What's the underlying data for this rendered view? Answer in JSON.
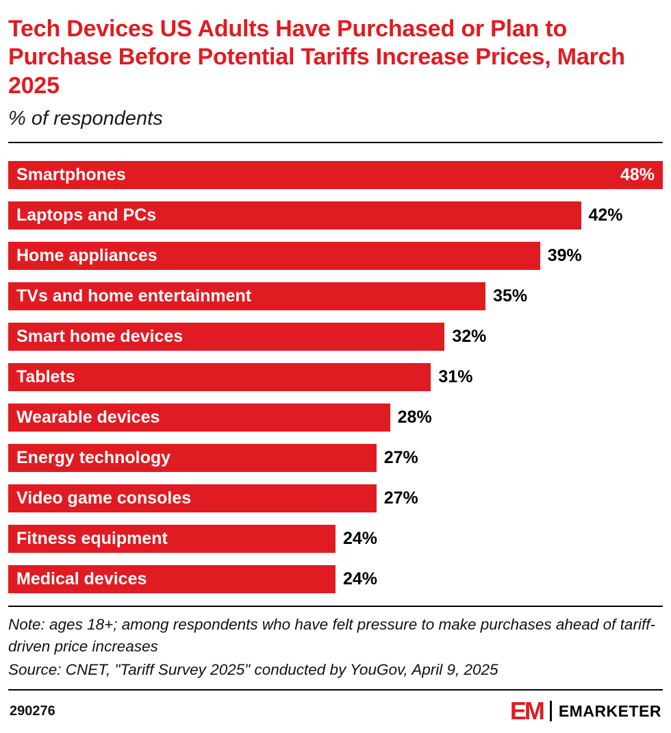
{
  "header": {
    "title": "Tech Devices US Adults Have Purchased or Plan to Purchase Before Potential Tariffs Increase Prices, March 2025",
    "subtitle": "% of respondents"
  },
  "chart_data": {
    "type": "bar",
    "orientation": "horizontal",
    "title": "Tech Devices US Adults Have Purchased or Plan to Purchase Before Potential Tariffs Increase Prices, March 2025",
    "subtitle": "% of respondents",
    "categories": [
      "Smartphones",
      "Laptops and PCs",
      "Home appliances",
      "TVs and home entertainment",
      "Smart home devices",
      "Tablets",
      "Wearable devices",
      "Energy technology",
      "Video game consoles",
      "Fitness equipment",
      "Medical devices"
    ],
    "values": [
      48,
      42,
      39,
      35,
      32,
      31,
      28,
      27,
      27,
      24,
      24
    ],
    "value_suffix": "%",
    "xlim": [
      0,
      48
    ],
    "bar_color": "#E11B22",
    "label_color_inside": "#ffffff",
    "value_color_outside": "#000000",
    "grid": "off",
    "legend": "none"
  },
  "footnote": {
    "note": "Note: ages 18+; among respondents who have felt pressure to make purchases ahead of tariff-driven price increases",
    "source": "Source: CNET, \"Tariff Survey 2025\" conducted by YouGov, April 9, 2025"
  },
  "footer": {
    "chart_id": "290276",
    "logo_mark": "EM",
    "brand_name": "EMARKETER"
  }
}
